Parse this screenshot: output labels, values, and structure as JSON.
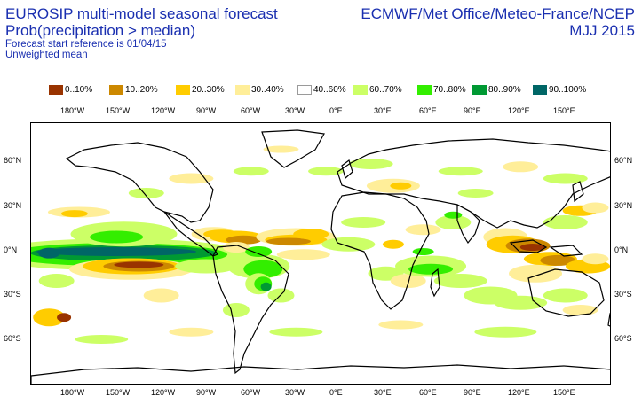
{
  "header": {
    "title": "EUROSIP multi-model seasonal forecast",
    "subtitle": "Prob(precipitation > median)",
    "start_reference": "Forecast start reference is 01/04/15",
    "mean_type": "Unweighted mean",
    "centres": "ECMWF/Met Office/Meteo-France/NCEP",
    "season": "MJJ 2015"
  },
  "legend": [
    {
      "label": "0..10%",
      "color": "#993300"
    },
    {
      "label": "10..20%",
      "color": "#cc8800"
    },
    {
      "label": "20..30%",
      "color": "#ffcc00"
    },
    {
      "label": "30..40%",
      "color": "#ffee99"
    },
    {
      "label": "40..60%",
      "color": "#ffffff"
    },
    {
      "label": "60..70%",
      "color": "#ccff66"
    },
    {
      "label": "70..80%",
      "color": "#33ee00"
    },
    {
      "label": "80..90%",
      "color": "#009933"
    },
    {
      "label": "90..100%",
      "color": "#006666"
    }
  ],
  "axes": {
    "lon_labels": [
      "180°W",
      "150°W",
      "120°W",
      "90°W",
      "60°W",
      "30°W",
      "0°E",
      "30°E",
      "60°E",
      "90°E",
      "120°E",
      "150°E"
    ],
    "lat_labels": [
      "60°N",
      "30°N",
      "0°N",
      "30°S",
      "60°S"
    ]
  }
}
